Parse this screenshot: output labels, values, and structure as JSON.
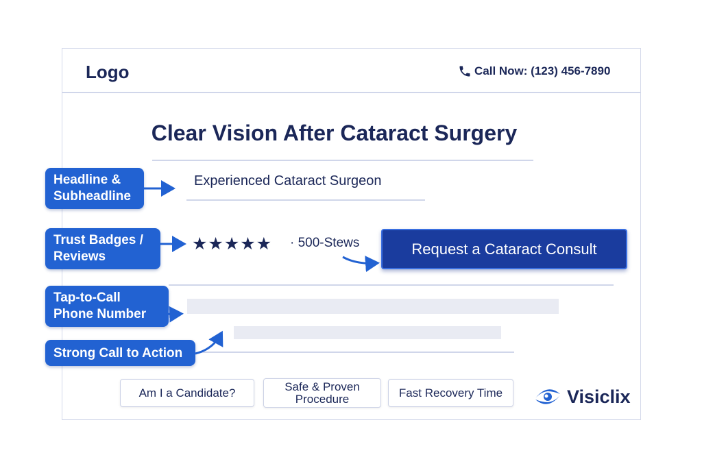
{
  "header": {
    "logo": "Logo",
    "phone_icon": "phone-icon",
    "call_now": "Call Now: (123) 456-7890"
  },
  "hero": {
    "title": "Clear Vision After Cataract Surgery",
    "subheadline": "Experienced Cataract Surgeon",
    "rating_stars": 5,
    "reviews": "· 500-Stews",
    "cta": "Request a Cataract Consult",
    "cta_bold": "Request"
  },
  "annotations": [
    {
      "line1": "Headline &",
      "line2": "Subheadline"
    },
    {
      "line1": "Trust Badges /",
      "line2": "Reviews"
    },
    {
      "line1": "Tap-to-Call",
      "line2": "Phone Number"
    },
    {
      "line1": "Strong Call to Action"
    }
  ],
  "features": [
    "Am I a Candidate?",
    "Safe & Proven Procedure",
    "Fast Recovery Time"
  ],
  "brand": {
    "name": "Visiclix",
    "color": "#2262d2"
  },
  "colors": {
    "label_bg": "#2262d2",
    "cta_bg": "#1a3c9e",
    "text": "#1b2758"
  }
}
